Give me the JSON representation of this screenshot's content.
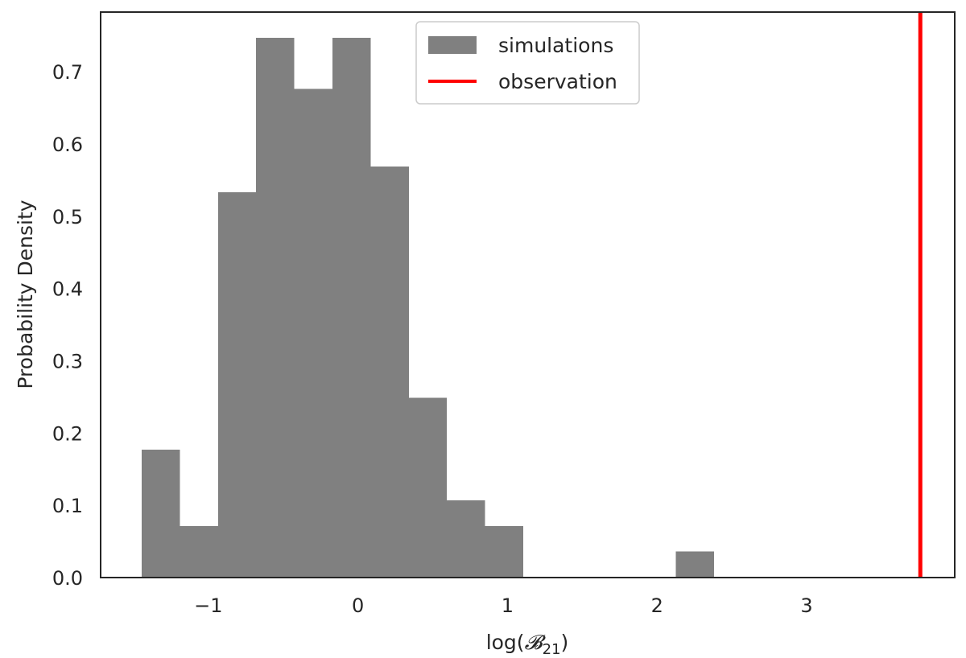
{
  "chart_data": {
    "type": "bar",
    "subtype": "histogram",
    "title": "",
    "xlabel_prefix": "log(",
    "xlabel_symbol": "𝓑",
    "xlabel_sub": "21",
    "xlabel_suffix": ")",
    "ylabel": "Probability Density",
    "xlim": [
      -1.72,
      3.99
    ],
    "ylim": [
      0,
      0.7825
    ],
    "xticks": [
      -1,
      0,
      1,
      2,
      3
    ],
    "xtick_labels": [
      "−1",
      "0",
      "1",
      "2",
      "3"
    ],
    "yticks": [
      0.0,
      0.1,
      0.2,
      0.3,
      0.4,
      0.5,
      0.6,
      0.7
    ],
    "ytick_labels": [
      "0.0",
      "0.1",
      "0.2",
      "0.3",
      "0.4",
      "0.5",
      "0.6",
      "0.7"
    ],
    "grid": false,
    "legend_position": "top-center",
    "series": [
      {
        "name": "simulations",
        "kind": "histogram",
        "color": "#808080",
        "bin_edges": [
          -1.445,
          -1.19,
          -0.935,
          -0.68,
          -0.425,
          -0.17,
          0.085,
          0.34,
          0.595,
          0.85,
          1.105,
          1.36,
          1.615,
          1.87,
          2.125,
          2.38
        ],
        "values": [
          0.177,
          0.071,
          0.533,
          0.747,
          0.676,
          0.747,
          0.569,
          0.249,
          0.107,
          0.071,
          0.0,
          0.0,
          0.0,
          0.0,
          0.036
        ]
      },
      {
        "name": "observation",
        "kind": "vline",
        "color": "#ff0000",
        "x": 3.76
      }
    ]
  }
}
